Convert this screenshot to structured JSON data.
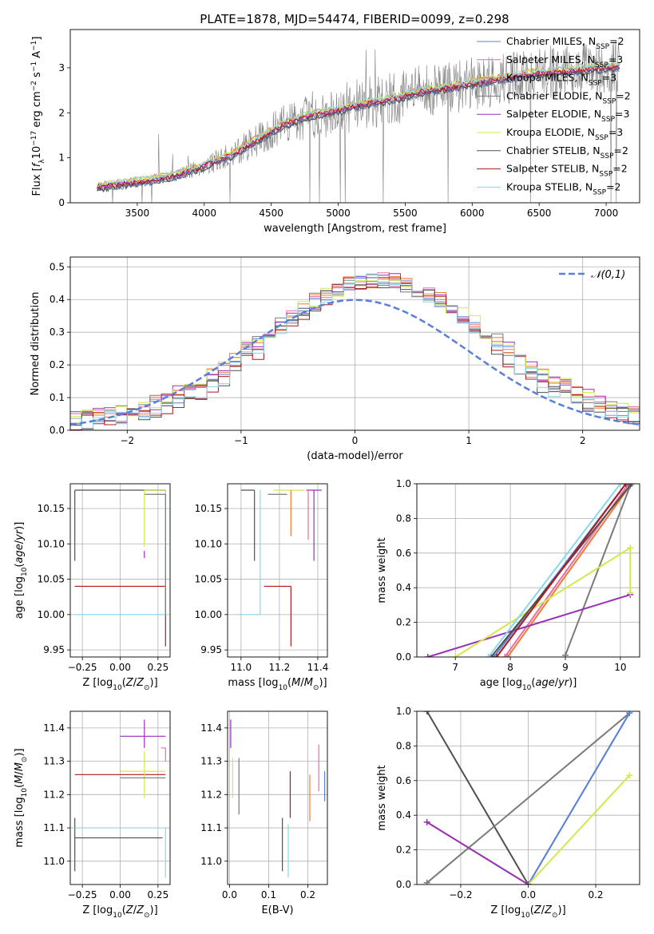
{
  "figure": {
    "title": "PLATE=1878, MJD=54474, FIBERID=0099, z=0.298"
  },
  "colors": {
    "Chabrier MILES": "#5a7fd6",
    "Salpeter MILES": "#e86ca8",
    "Kroupa MILES": "#f07a32",
    "Chabrier ELODIE": "#7a7a7a",
    "Salpeter ELODIE": "#9a2fb8",
    "Kroupa ELODIE": "#d4e84a",
    "Chabrier STELIB": "#505050",
    "Salpeter STELIB": "#b01818",
    "Kroupa STELIB": "#88d8ea",
    "normal_curve": "#5a7fd6",
    "data_spectrum": "#7f7f7f",
    "grid": "#b0b0b0"
  },
  "chart_data": [
    {
      "id": "spectrum",
      "type": "line",
      "title": "PLATE=1878, MJD=54474, FIBERID=0099, z=0.298",
      "xlabel": "wavelength [Angstrom, rest frame]",
      "ylabel": "Flux [f_λ 10^-17 erg cm^-2 s^-1 A^-1]",
      "xlim": [
        3000,
        7250
      ],
      "ylim": [
        0,
        3.85
      ],
      "xticks": [
        3500,
        4000,
        4500,
        5000,
        5500,
        6000,
        6500,
        7000
      ],
      "yticks": [
        0,
        1,
        2,
        3
      ],
      "grid": false,
      "legend_position": "upper-right",
      "legend": [
        {
          "label": "Chabrier MILES",
          "sub": "N",
          "subscript": "SSP",
          "suffix": "=2"
        },
        {
          "label": "Salpeter MILES",
          "sub": "N",
          "subscript": "SSP",
          "suffix": "=3"
        },
        {
          "label": "Kroupa MILES",
          "sub": "N",
          "subscript": "SSP",
          "suffix": "=3"
        },
        {
          "label": "Chabrier ELODIE",
          "sub": "N",
          "subscript": "SSP",
          "suffix": "=2"
        },
        {
          "label": "Salpeter ELODIE",
          "sub": "N",
          "subscript": "SSP",
          "suffix": "=3"
        },
        {
          "label": "Kroupa ELODIE",
          "sub": "N",
          "subscript": "SSP",
          "suffix": "=3"
        },
        {
          "label": "Chabrier STELIB",
          "sub": "N",
          "subscript": "SSP",
          "suffix": "=2"
        },
        {
          "label": "Salpeter STELIB",
          "sub": "N",
          "subscript": "SSP",
          "suffix": "=2"
        },
        {
          "label": "Kroupa STELIB",
          "sub": "N",
          "subscript": "SSP",
          "suffix": "=2"
        }
      ],
      "continuum": {
        "x": [
          3200,
          3400,
          3600,
          3800,
          4000,
          4200,
          4400,
          4600,
          4800,
          5000,
          5200,
          5400,
          5600,
          5800,
          6000,
          6200,
          6400,
          6600,
          6800,
          7000,
          7100
        ],
        "y": [
          0.35,
          0.42,
          0.5,
          0.62,
          0.82,
          1.05,
          1.4,
          1.75,
          1.95,
          2.05,
          2.2,
          2.3,
          2.45,
          2.55,
          2.65,
          2.75,
          2.85,
          2.9,
          2.95,
          3.0,
          3.02
        ]
      }
    },
    {
      "id": "residuals",
      "type": "line",
      "xlabel": "(data-model)/error",
      "ylabel": "Normed distribution",
      "xlim": [
        -2.5,
        2.5
      ],
      "ylim": [
        0,
        0.53
      ],
      "xticks": [
        -2,
        -1,
        0,
        1,
        2
      ],
      "yticks": [
        0.0,
        0.1,
        0.2,
        0.3,
        0.4,
        0.5
      ],
      "grid": true,
      "legend_position": "upper-right",
      "legend": [
        {
          "label": "N(0,1)",
          "display": "𝒩(0,1)"
        }
      ],
      "normal_curve": {
        "mean": 0,
        "sigma": 1
      }
    },
    {
      "id": "age_vs_Z",
      "type": "scatter",
      "xlabel": "Z [log10(Z/Z⊙)]",
      "ylabel": "age [log10(age/yr)]",
      "xlim": [
        -0.33,
        0.33
      ],
      "ylim": [
        9.94,
        10.185
      ],
      "xticks": [
        -0.25,
        0.0,
        0.25
      ],
      "xtick_labels": [
        "−0.25",
        "0.00",
        "0.25"
      ],
      "yticks": [
        9.95,
        10.0,
        10.05,
        10.1,
        10.15
      ],
      "ytick_labels": [
        "9.95",
        "10.00",
        "10.05",
        "10.10",
        "10.15"
      ],
      "grid": true,
      "series": [
        {
          "model": "Chabrier STELIB",
          "x": -0.3,
          "y": 10.176,
          "xerr": [
            0.0,
            0.6
          ],
          "yerr": [
            0.1,
            0.0
          ]
        },
        {
          "model": "Salpeter STELIB",
          "x": 0.3,
          "y": 10.04,
          "xerr": [
            0.6,
            0.0
          ],
          "yerr": [
            0.085,
            0.0
          ]
        },
        {
          "model": "Kroupa STELIB",
          "x": 0.3,
          "y": 10.0,
          "xerr": [
            0.6,
            0.0
          ],
          "yerr": [
            0.0,
            0.176
          ]
        },
        {
          "model": "Chabrier ELODIE",
          "x": 0.3,
          "y": 10.17,
          "xerr": [
            0.14,
            0.0
          ],
          "yerr": [
            0.17,
            0.0
          ]
        },
        {
          "model": "Salpeter ELODIE",
          "x": 0.3,
          "y": 10.176,
          "xerr": [
            0.14,
            0.0
          ],
          "yerr": [
            0.0,
            0.0
          ]
        },
        {
          "model": "Kroupa ELODIE",
          "x": 0.16,
          "y": 10.176,
          "xerr": [
            0.0,
            0.14
          ],
          "yerr": [
            0.08,
            0.0
          ]
        },
        {
          "model": "Salpeter ELODIE",
          "x": 0.16,
          "y": 10.09,
          "xerr": [
            0.0,
            0.0
          ],
          "yerr": [
            0.01,
            0.0
          ]
        }
      ]
    },
    {
      "id": "age_vs_mass",
      "type": "scatter",
      "xlabel": "mass [log10(M/M⊙)]",
      "ylabel": "",
      "xlim": [
        10.93,
        11.45
      ],
      "ylim": [
        9.94,
        10.185
      ],
      "xticks": [
        11.0,
        11.2,
        11.4
      ],
      "xtick_labels": [
        "11.0",
        "11.2",
        "11.4"
      ],
      "yticks": [
        9.95,
        10.0,
        10.05,
        10.1,
        10.15
      ],
      "ytick_labels": [
        "9.95",
        "10.00",
        "10.05",
        "10.10",
        "10.15"
      ],
      "grid": true,
      "series": [
        {
          "model": "Chabrier STELIB",
          "x": 11.07,
          "y": 10.176,
          "xerr": [
            0.07,
            0.0
          ],
          "yerr": [
            0.1,
            0.0
          ]
        },
        {
          "model": "Kroupa STELIB",
          "x": 11.1,
          "y": 10.0,
          "xerr": [
            0.12,
            0.0
          ],
          "yerr": [
            0.0,
            0.176
          ]
        },
        {
          "model": "Salpeter STELIB",
          "x": 11.26,
          "y": 10.04,
          "xerr": [
            0.14,
            0.0
          ],
          "yerr": [
            0.085,
            0.0
          ]
        },
        {
          "model": "Chabrier ELODIE",
          "x": 11.14,
          "y": 10.17,
          "xerr": [
            0.0,
            0.1
          ],
          "yerr": [
            0.0,
            0.0
          ]
        },
        {
          "model": "Kroupa ELODIE",
          "x": 11.27,
          "y": 10.176,
          "xerr": [
            0.1,
            0.06
          ],
          "yerr": [
            0.0,
            0.0
          ]
        },
        {
          "model": "Salpeter ELODIE",
          "x": 11.38,
          "y": 10.176,
          "xerr": [
            0.04,
            0.04
          ],
          "yerr": [
            0.1,
            0.0
          ]
        },
        {
          "model": "Salpeter MILES",
          "x": 11.35,
          "y": 10.176,
          "xerr": [
            0.0,
            0.0
          ],
          "yerr": [
            0.07,
            0.0
          ]
        },
        {
          "model": "Kroupa MILES",
          "x": 11.26,
          "y": 10.176,
          "xerr": [
            0.0,
            0.0
          ],
          "yerr": [
            0.065,
            0.0
          ]
        }
      ]
    },
    {
      "id": "weight_vs_age",
      "type": "line",
      "xlabel": "age [log10(age/yr)]",
      "ylabel": "mass weight",
      "xlim": [
        6.3,
        10.35
      ],
      "ylim": [
        0,
        1.0
      ],
      "xticks": [
        7,
        8,
        9,
        10
      ],
      "yticks": [
        0.0,
        0.2,
        0.4,
        0.6,
        0.8,
        1.0
      ],
      "grid": true,
      "series": [
        {
          "model": "Chabrier MILES",
          "x": [
            7.7,
            10.1
          ],
          "y": [
            0,
            1.0
          ]
        },
        {
          "model": "Salpeter MILES",
          "x": [
            7.9,
            10.15
          ],
          "y": [
            0,
            1.0
          ]
        },
        {
          "model": "Kroupa MILES",
          "x": [
            7.95,
            10.2
          ],
          "y": [
            0,
            1.0
          ]
        },
        {
          "model": "Chabrier ELODIE",
          "x": [
            9.0,
            10.18
          ],
          "y": [
            0.01,
            0.99
          ]
        },
        {
          "model": "Salpeter ELODIE",
          "x": [
            6.5,
            10.18
          ],
          "y": [
            0.0,
            0.36
          ]
        },
        {
          "model": "Kroupa ELODIE",
          "x": [
            7.0,
            10.18,
            10.18
          ],
          "y": [
            0.0,
            0.63,
            0.37
          ]
        },
        {
          "model": "Chabrier STELIB",
          "x": [
            7.65,
            10.2
          ],
          "y": [
            0,
            1.0
          ]
        },
        {
          "model": "Salpeter STELIB",
          "x": [
            7.75,
            10.1
          ],
          "y": [
            0,
            1.0
          ]
        },
        {
          "model": "Kroupa STELIB",
          "x": [
            7.6,
            10.0
          ],
          "y": [
            0,
            1.0
          ]
        }
      ]
    },
    {
      "id": "mass_vs_Z",
      "type": "scatter",
      "xlabel": "Z [log10(Z/Z⊙)]",
      "ylabel": "mass [log10(M/M⊙)]",
      "xlim": [
        -0.33,
        0.33
      ],
      "ylim": [
        10.93,
        11.45
      ],
      "xticks": [
        -0.25,
        0.0,
        0.25
      ],
      "xtick_labels": [
        "−0.25",
        "0.00",
        "0.25"
      ],
      "yticks": [
        11.0,
        11.1,
        11.2,
        11.3,
        11.4
      ],
      "ytick_labels": [
        "11.0",
        "11.1",
        "11.2",
        "11.3",
        "11.4"
      ],
      "grid": true,
      "series": [
        {
          "model": "Chabrier STELIB",
          "x": -0.3,
          "y": 11.07,
          "xerr": [
            0.0,
            0.58
          ],
          "yerr": [
            0.1,
            0.06
          ]
        },
        {
          "model": "Kroupa STELIB",
          "x": -0.3,
          "y": 11.1,
          "xerr": [
            0.0,
            0.6
          ],
          "yerr": [
            0.0,
            0.0
          ]
        },
        {
          "model": "Salpeter STELIB",
          "x": -0.3,
          "y": 11.26,
          "xerr": [
            0.0,
            0.6
          ],
          "yerr": [
            0.0,
            0.0
          ]
        },
        {
          "model": "Salpeter ELODIE",
          "x": 0.16,
          "y": 11.375,
          "xerr": [
            0.16,
            0.14
          ],
          "yerr": [
            0.035,
            0.05
          ]
        },
        {
          "model": "Kroupa ELODIE",
          "x": 0.16,
          "y": 11.27,
          "xerr": [
            0.16,
            0.14
          ],
          "yerr": [
            0.08,
            0.06
          ]
        },
        {
          "model": "Chabrier ELODIE",
          "x": 0.0,
          "y": 11.25,
          "xerr": [
            0.0,
            0.3
          ],
          "yerr": [
            0.0,
            0.0
          ]
        },
        {
          "model": "Salpeter MILES",
          "x": 0.3,
          "y": 11.34,
          "xerr": [
            0.03,
            0.0
          ],
          "yerr": [
            0.04,
            0.0
          ]
        },
        {
          "model": "Kroupa STELIB",
          "x": 0.3,
          "y": 11.1,
          "xerr": [
            0.0,
            0.0
          ],
          "yerr": [
            0.15,
            0.0
          ]
        }
      ]
    },
    {
      "id": "mass_vs_EBV",
      "type": "scatter",
      "xlabel": "E(B-V)",
      "ylabel": "",
      "xlim": [
        -0.005,
        0.25
      ],
      "ylim": [
        10.93,
        11.45
      ],
      "xticks": [
        0.0,
        0.1,
        0.2
      ],
      "xtick_labels": [
        "0.0",
        "0.1",
        "0.2"
      ],
      "yticks": [
        11.0,
        11.1,
        11.2,
        11.3,
        11.4
      ],
      "ytick_labels": [
        "11.0",
        "11.1",
        "11.2",
        "11.3",
        "11.4"
      ],
      "grid": true,
      "series": [
        {
          "model": "Salpeter ELODIE",
          "x": 0.003,
          "y": 11.375,
          "yerr": [
            0.035,
            0.05
          ]
        },
        {
          "model": "Kroupa ELODIE",
          "x": 0.008,
          "y": 11.25,
          "yerr": [
            0.06,
            0.06
          ]
        },
        {
          "model": "Chabrier ELODIE",
          "x": 0.024,
          "y": 11.23,
          "yerr": [
            0.09,
            0.08
          ]
        },
        {
          "model": "Chabrier STELIB",
          "x": 0.135,
          "y": 11.05,
          "yerr": [
            0.08,
            0.08
          ]
        },
        {
          "model": "Salpeter STELIB",
          "x": 0.155,
          "y": 11.2,
          "yerr": [
            0.07,
            0.07
          ]
        },
        {
          "model": "Kroupa STELIB",
          "x": 0.15,
          "y": 11.03,
          "yerr": [
            0.08,
            0.08
          ]
        },
        {
          "model": "Kroupa MILES",
          "x": 0.205,
          "y": 11.19,
          "yerr": [
            0.07,
            0.07
          ]
        },
        {
          "model": "Salpeter MILES",
          "x": 0.228,
          "y": 11.28,
          "yerr": [
            0.07,
            0.07
          ]
        },
        {
          "model": "Chabrier MILES",
          "x": 0.243,
          "y": 11.22,
          "yerr": [
            0.04,
            0.05
          ]
        }
      ]
    },
    {
      "id": "weight_vs_Z",
      "type": "line",
      "xlabel": "Z [log10(Z/Z⊙)]",
      "ylabel": "mass weight",
      "xlim": [
        -0.33,
        0.33
      ],
      "ylim": [
        0,
        1.0
      ],
      "xticks": [
        -0.2,
        0.0,
        0.2
      ],
      "xtick_labels": [
        "−0.2",
        "0.0",
        "0.2"
      ],
      "yticks": [
        0.0,
        0.2,
        0.4,
        0.6,
        0.8,
        1.0
      ],
      "grid": true,
      "series": [
        {
          "model": "Chabrier STELIB",
          "x": [
            -0.3,
            0.0
          ],
          "y": [
            1.0,
            0.0
          ]
        },
        {
          "model": "Chabrier ELODIE",
          "x": [
            -0.3,
            0.3
          ],
          "y": [
            0.01,
            0.99
          ]
        },
        {
          "model": "Kroupa STELIB",
          "x": [
            0.0,
            0.3
          ],
          "y": [
            0.0,
            0.99
          ]
        },
        {
          "model": "Chabrier MILES",
          "x": [
            0.0,
            0.3
          ],
          "y": [
            0.0,
            0.99
          ]
        },
        {
          "model": "Kroupa ELODIE",
          "x": [
            -0.3,
            0.0,
            0.3
          ],
          "y": [
            0.36,
            0.0,
            0.63
          ]
        },
        {
          "model": "Salpeter ELODIE",
          "x": [
            -0.3,
            0.0
          ],
          "y": [
            0.36,
            0.0
          ]
        }
      ]
    }
  ]
}
